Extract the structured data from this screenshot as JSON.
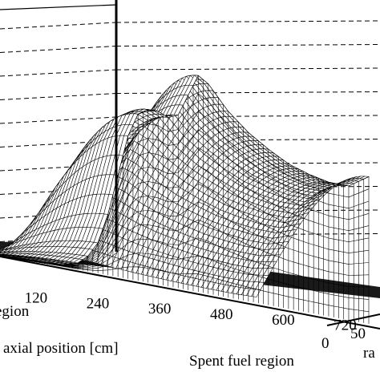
{
  "chart_data": {
    "type": "surface",
    "title": "",
    "x_axis": {
      "label": "axial position [cm]",
      "ticks": [
        "120",
        "240",
        "360",
        "480",
        "600",
        "720"
      ],
      "range": [
        0,
        800
      ]
    },
    "y_axis": {
      "label": "ra",
      "ticks": [
        "0",
        "50"
      ]
    },
    "z_axis": {
      "label": "",
      "ticks": [],
      "gridlines": 10
    },
    "region_labels": {
      "left": "egion",
      "right": "Spent fuel region"
    },
    "surface_profile": {
      "description_free": true,
      "axial_cm": [
        60,
        120,
        150,
        180,
        200,
        220,
        240,
        260,
        280,
        300,
        320,
        340,
        360,
        380,
        400,
        420,
        440,
        480,
        520,
        560,
        600,
        640,
        680,
        720,
        760
      ],
      "centerline_relative": [
        0.0,
        0.0,
        0.01,
        0.03,
        0.07,
        0.14,
        0.28,
        0.47,
        0.66,
        0.77,
        0.8,
        0.8,
        0.78,
        0.8,
        0.9,
        1.0,
        0.97,
        0.86,
        0.78,
        0.72,
        0.67,
        0.64,
        0.62,
        0.62,
        0.68
      ]
    }
  }
}
